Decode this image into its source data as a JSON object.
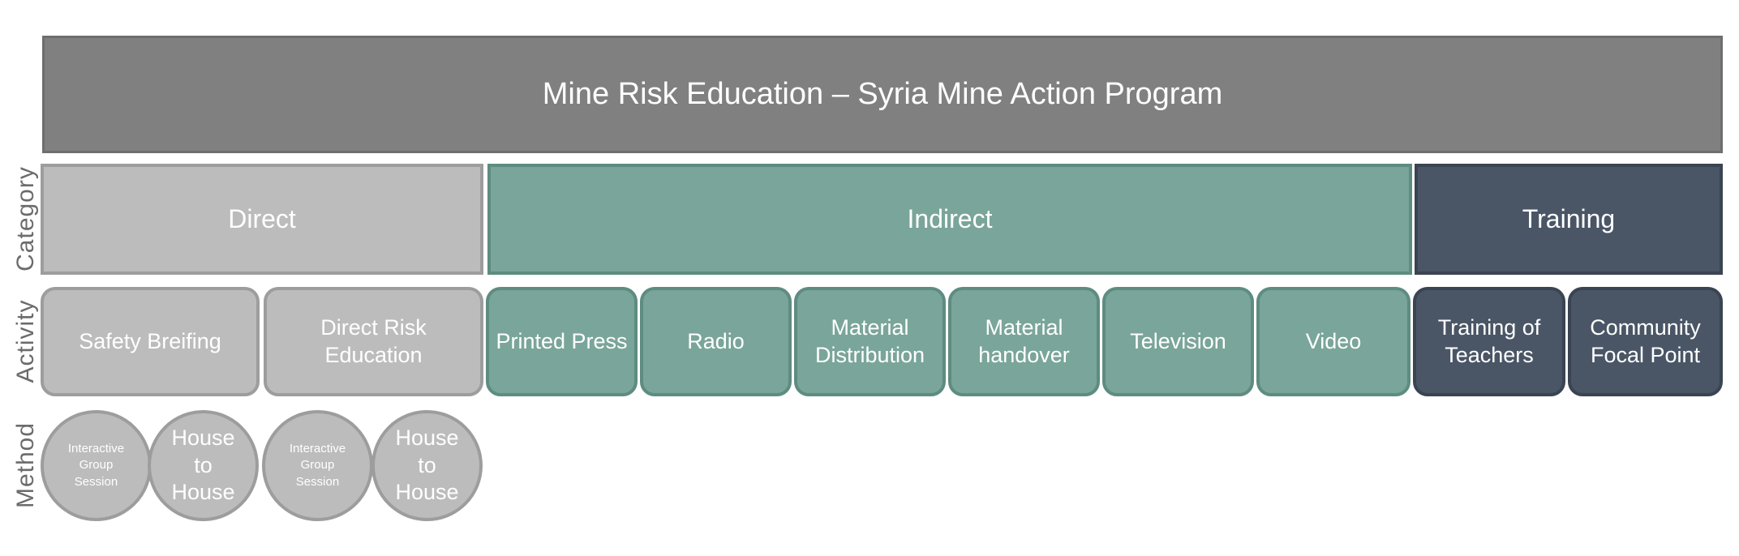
{
  "title": "Mine Risk Education – Syria Mine Action Program",
  "row_labels": {
    "category": "Category",
    "activity": "Activity",
    "method": "Method"
  },
  "categories": {
    "direct": "Direct",
    "indirect": "Indirect",
    "training": "Training"
  },
  "activities": {
    "safety_briefing": "Safety Breifing",
    "direct_risk_education": "Direct Risk\nEducation",
    "printed_press": "Printed Press",
    "radio": "Radio",
    "material_distribution": "Material\nDistribution",
    "material_handover": "Material\nhandover",
    "television": "Television",
    "video": "Video",
    "training_of_teachers": "Training of\nTeachers",
    "community_focal_point": "Community\nFocal Point"
  },
  "methods": [
    "Interactive\nGroup\nSession",
    "House\nto\nHouse",
    "Interactive\nGroup\nSession",
    "House\nto\nHouse"
  ],
  "colors": {
    "header": "#808080",
    "direct": "#bcbcbc",
    "indirect": "#7aa59a",
    "training": "#4a5666",
    "label_text": "#6b6b6b"
  }
}
